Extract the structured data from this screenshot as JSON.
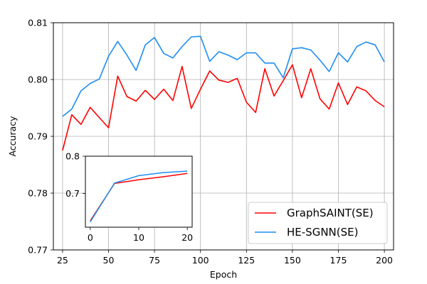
{
  "chart_data": [
    {
      "type": "line",
      "title": "",
      "xlabel": "Epoch",
      "ylabel": "Accuracy",
      "xlim": [
        20,
        205
      ],
      "ylim": [
        0.77,
        0.81
      ],
      "xticks": [
        25,
        50,
        75,
        100,
        125,
        150,
        175,
        200
      ],
      "yticks": [
        0.77,
        0.78,
        0.79,
        0.8,
        0.81
      ],
      "xtick_labels": [
        "25",
        "50",
        "75",
        "100",
        "125",
        "150",
        "175",
        "200"
      ],
      "ytick_labels": [
        "0.77",
        "0.78",
        "0.79",
        "0.80",
        "0.81"
      ],
      "grid": true,
      "legend_position": "lower-right",
      "x": [
        25,
        30,
        35,
        40,
        45,
        50,
        55,
        60,
        65,
        70,
        75,
        80,
        85,
        90,
        95,
        100,
        105,
        110,
        115,
        120,
        125,
        130,
        135,
        140,
        145,
        150,
        155,
        160,
        165,
        170,
        175,
        180,
        185,
        190,
        195,
        200
      ],
      "series": [
        {
          "name": "GraphSAINT(SE)",
          "color": "#ff0000",
          "values": [
            0.7875,
            0.7938,
            0.7921,
            0.7951,
            0.7933,
            0.7915,
            0.8006,
            0.797,
            0.7962,
            0.7981,
            0.7965,
            0.7983,
            0.7963,
            0.8023,
            0.7949,
            0.7983,
            0.8015,
            0.7999,
            0.7995,
            0.8002,
            0.796,
            0.7942,
            0.8019,
            0.7971,
            0.7998,
            0.8026,
            0.7968,
            0.8019,
            0.7966,
            0.7948,
            0.7994,
            0.7956,
            0.7987,
            0.798,
            0.7963,
            0.7952
          ]
        },
        {
          "name": "HE-SGNN(SE)",
          "color": "#1f8ef1",
          "values": [
            0.7935,
            0.7948,
            0.798,
            0.7993,
            0.8001,
            0.8041,
            0.8067,
            0.8043,
            0.8016,
            0.8061,
            0.8074,
            0.8046,
            0.8038,
            0.8058,
            0.8075,
            0.8076,
            0.8032,
            0.8049,
            0.8043,
            0.8035,
            0.8047,
            0.8047,
            0.8029,
            0.8029,
            0.8003,
            0.8054,
            0.8056,
            0.8052,
            0.8034,
            0.8014,
            0.8047,
            0.8031,
            0.8058,
            0.8066,
            0.8061,
            0.8031
          ]
        }
      ]
    },
    {
      "type": "line",
      "title": "",
      "xlabel": "",
      "ylabel": "",
      "xlim": [
        -1,
        21
      ],
      "ylim": [
        0.61,
        0.8
      ],
      "xticks": [
        0,
        10,
        20
      ],
      "yticks": [
        0.7,
        0.8
      ],
      "xtick_labels": [
        "0",
        "10",
        "20"
      ],
      "ytick_labels": [
        "0.7",
        "0.8"
      ],
      "grid": false,
      "x": [
        0,
        5,
        10,
        15,
        20
      ],
      "series": [
        {
          "color": "#ff0000",
          "values": [
            0.627,
            0.727,
            0.737,
            0.745,
            0.754
          ]
        },
        {
          "color": "#1f8ef1",
          "values": [
            0.624,
            0.728,
            0.748,
            0.756,
            0.76
          ]
        }
      ]
    }
  ]
}
